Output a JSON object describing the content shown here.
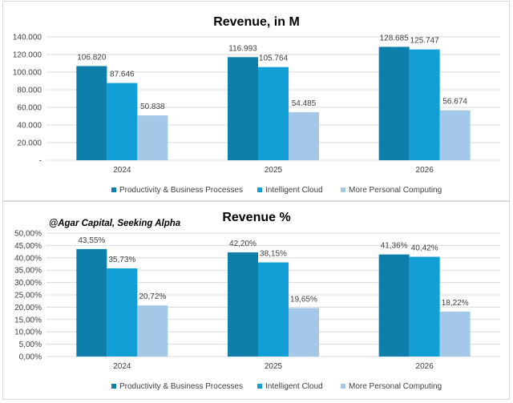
{
  "colors": [
    "#0e7fab",
    "#129fd6",
    "#a3c8e8"
  ],
  "chart_data": [
    {
      "type": "bar",
      "title": "Revenue, in M",
      "categories": [
        "2024",
        "2025",
        "2026"
      ],
      "series": [
        {
          "name": "Productivity & Business Processes",
          "values": [
            106820,
            116993,
            128685
          ],
          "labels": [
            "106.820",
            "116.993",
            "128.685"
          ]
        },
        {
          "name": "Intelligent Cloud",
          "values": [
            87646,
            105764,
            125747
          ],
          "labels": [
            "87.646",
            "105.764",
            "125.747"
          ]
        },
        {
          "name": "More Personal Computing",
          "values": [
            50838,
            54485,
            56674
          ],
          "labels": [
            "50.838",
            "54.485",
            "56.674"
          ]
        }
      ],
      "ylim": [
        0,
        140000
      ],
      "yticks": [
        "-",
        "20.000",
        "40.000",
        "60.000",
        "80.000",
        "100.000",
        "120.000",
        "140.000"
      ],
      "grid": true,
      "legend": "bottom"
    },
    {
      "type": "bar",
      "title": "Revenue %",
      "annotation": "@Agar Capital, Seeking Alpha",
      "categories": [
        "2024",
        "2025",
        "2026"
      ],
      "series": [
        {
          "name": "Productivity & Business Processes",
          "values": [
            43.55,
            42.2,
            41.36
          ],
          "labels": [
            "43,55%",
            "42,20%",
            "41,36%"
          ]
        },
        {
          "name": "Intelligent Cloud",
          "values": [
            35.73,
            38.15,
            40.42
          ],
          "labels": [
            "35,73%",
            "38,15%",
            "40,42%"
          ]
        },
        {
          "name": "More Personal Computing",
          "values": [
            20.72,
            19.65,
            18.22
          ],
          "labels": [
            "20,72%",
            "19,65%",
            "18,22%"
          ]
        }
      ],
      "ylim": [
        0,
        50
      ],
      "yticks": [
        "0,00%",
        "5,00%",
        "10,00%",
        "15,00%",
        "20,00%",
        "25,00%",
        "30,00%",
        "35,00%",
        "40,00%",
        "45,00%",
        "50,00%"
      ],
      "grid": true,
      "legend": "bottom"
    }
  ]
}
